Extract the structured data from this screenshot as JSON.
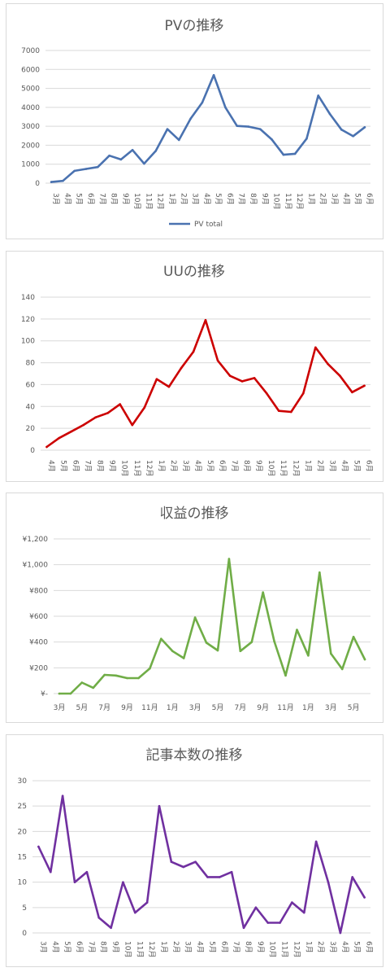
{
  "chart_data": [
    {
      "type": "line",
      "title": "PVの推移",
      "legend": "bottom",
      "color": "#4a72b0",
      "categories": [
        "3月",
        "4月",
        "5月",
        "6月",
        "7月",
        "8月",
        "9月",
        "10月",
        "11月",
        "12月",
        "1月",
        "2月",
        "3月",
        "4月",
        "5月",
        "6月",
        "7月",
        "8月",
        "9月",
        "10月",
        "11月",
        "12月",
        "1月",
        "2月",
        "3月",
        "4月",
        "5月",
        "6月"
      ],
      "series": [
        {
          "name": "PV total",
          "values": [
            60,
            120,
            650,
            750,
            850,
            1450,
            1250,
            1750,
            1030,
            1700,
            2850,
            2280,
            3400,
            4250,
            5700,
            4000,
            3020,
            2980,
            2850,
            2300,
            1500,
            1550,
            2350,
            4620,
            3650,
            2820,
            2480,
            2950
          ]
        }
      ],
      "ylim": [
        0,
        7000
      ],
      "yticks": [
        "0",
        "1000",
        "2000",
        "3000",
        "4000",
        "5000",
        "6000",
        "7000"
      ],
      "grid": true
    },
    {
      "type": "line",
      "title": "UUの推移",
      "color": "#cc0000",
      "categories": [
        "4月",
        "5月",
        "6月",
        "7月",
        "8月",
        "9月",
        "10月",
        "11月",
        "12月",
        "1月",
        "2月",
        "3月",
        "4月",
        "5月",
        "6月",
        "7月",
        "8月",
        "9月",
        "10月",
        "11月",
        "12月",
        "1月",
        "2月",
        "3月",
        "4月",
        "5月",
        "6月"
      ],
      "series": [
        {
          "values": [
            3,
            11,
            17,
            23,
            30,
            34,
            42,
            23,
            39,
            65,
            58,
            75,
            90,
            119,
            82,
            68,
            63,
            66,
            52,
            36,
            35,
            52,
            94,
            79,
            68,
            53,
            59
          ]
        }
      ],
      "ylim": [
        0,
        140
      ],
      "yticks": [
        "0",
        "20",
        "40",
        "60",
        "80",
        "100",
        "120",
        "140"
      ],
      "grid": true
    },
    {
      "type": "line",
      "title": "収益の推移",
      "color": "#70ad47",
      "categories": [
        "3月",
        "",
        "5月",
        "",
        "7月",
        "",
        "9月",
        "",
        "11月",
        "",
        "1月",
        "",
        "3月",
        "",
        "5月",
        "",
        "7月",
        "",
        "9月",
        "",
        "11月",
        "",
        "1月",
        "",
        "3月",
        "",
        "5月",
        ""
      ],
      "series": [
        {
          "values": [
            0,
            0,
            85,
            45,
            145,
            140,
            120,
            120,
            195,
            425,
            330,
            275,
            590,
            395,
            335,
            1045,
            330,
            400,
            785,
            405,
            140,
            495,
            295,
            940,
            310,
            190,
            440,
            265
          ]
        }
      ],
      "ylim": [
        0,
        1200
      ],
      "yticks": [
        "¥-",
        "¥200",
        "¥400",
        "¥600",
        "¥800",
        "¥1,000",
        "¥1,200"
      ],
      "grid": true
    },
    {
      "type": "line",
      "title": "記事本数の推移",
      "color": "#7030a0",
      "categories": [
        "3月",
        "4月",
        "5月",
        "6月",
        "7月",
        "8月",
        "9月",
        "10月",
        "11月",
        "12月",
        "1月",
        "2月",
        "3月",
        "4月",
        "5月",
        "6月",
        "7月",
        "8月",
        "9月",
        "10月",
        "11月",
        "12月",
        "1月",
        "2月",
        "3月",
        "4月",
        "5月",
        "6月"
      ],
      "series": [
        {
          "values": [
            17,
            12,
            27,
            10,
            12,
            3,
            1,
            10,
            4,
            6,
            25,
            14,
            13,
            14,
            11,
            11,
            12,
            1,
            5,
            2,
            2,
            6,
            4,
            18,
            10,
            0,
            11,
            7
          ]
        }
      ],
      "ylim": [
        0,
        30
      ],
      "yticks": [
        "0",
        "5",
        "10",
        "15",
        "20",
        "25",
        "30"
      ],
      "grid": true
    }
  ]
}
